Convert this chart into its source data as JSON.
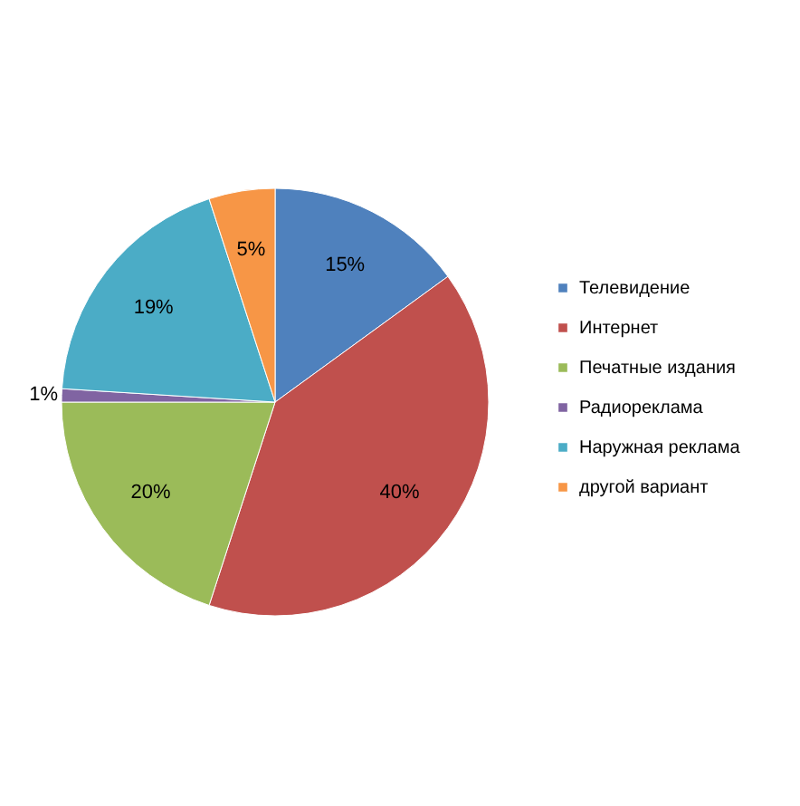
{
  "chart_data": {
    "type": "pie",
    "categories": [
      "Телевидение",
      "Интернет",
      "Печатные издания",
      "Радиореклама",
      "Наружная реклама",
      "другой вариант"
    ],
    "values": [
      15,
      40,
      20,
      1,
      19,
      5
    ],
    "value_labels": [
      "15%",
      "40%",
      "20%",
      "1%",
      "19%",
      "5%"
    ],
    "colors": [
      "#4f81bd",
      "#c0504d",
      "#9bbb59",
      "#8064a2",
      "#4bacc6",
      "#f79646"
    ],
    "legend": "right"
  }
}
